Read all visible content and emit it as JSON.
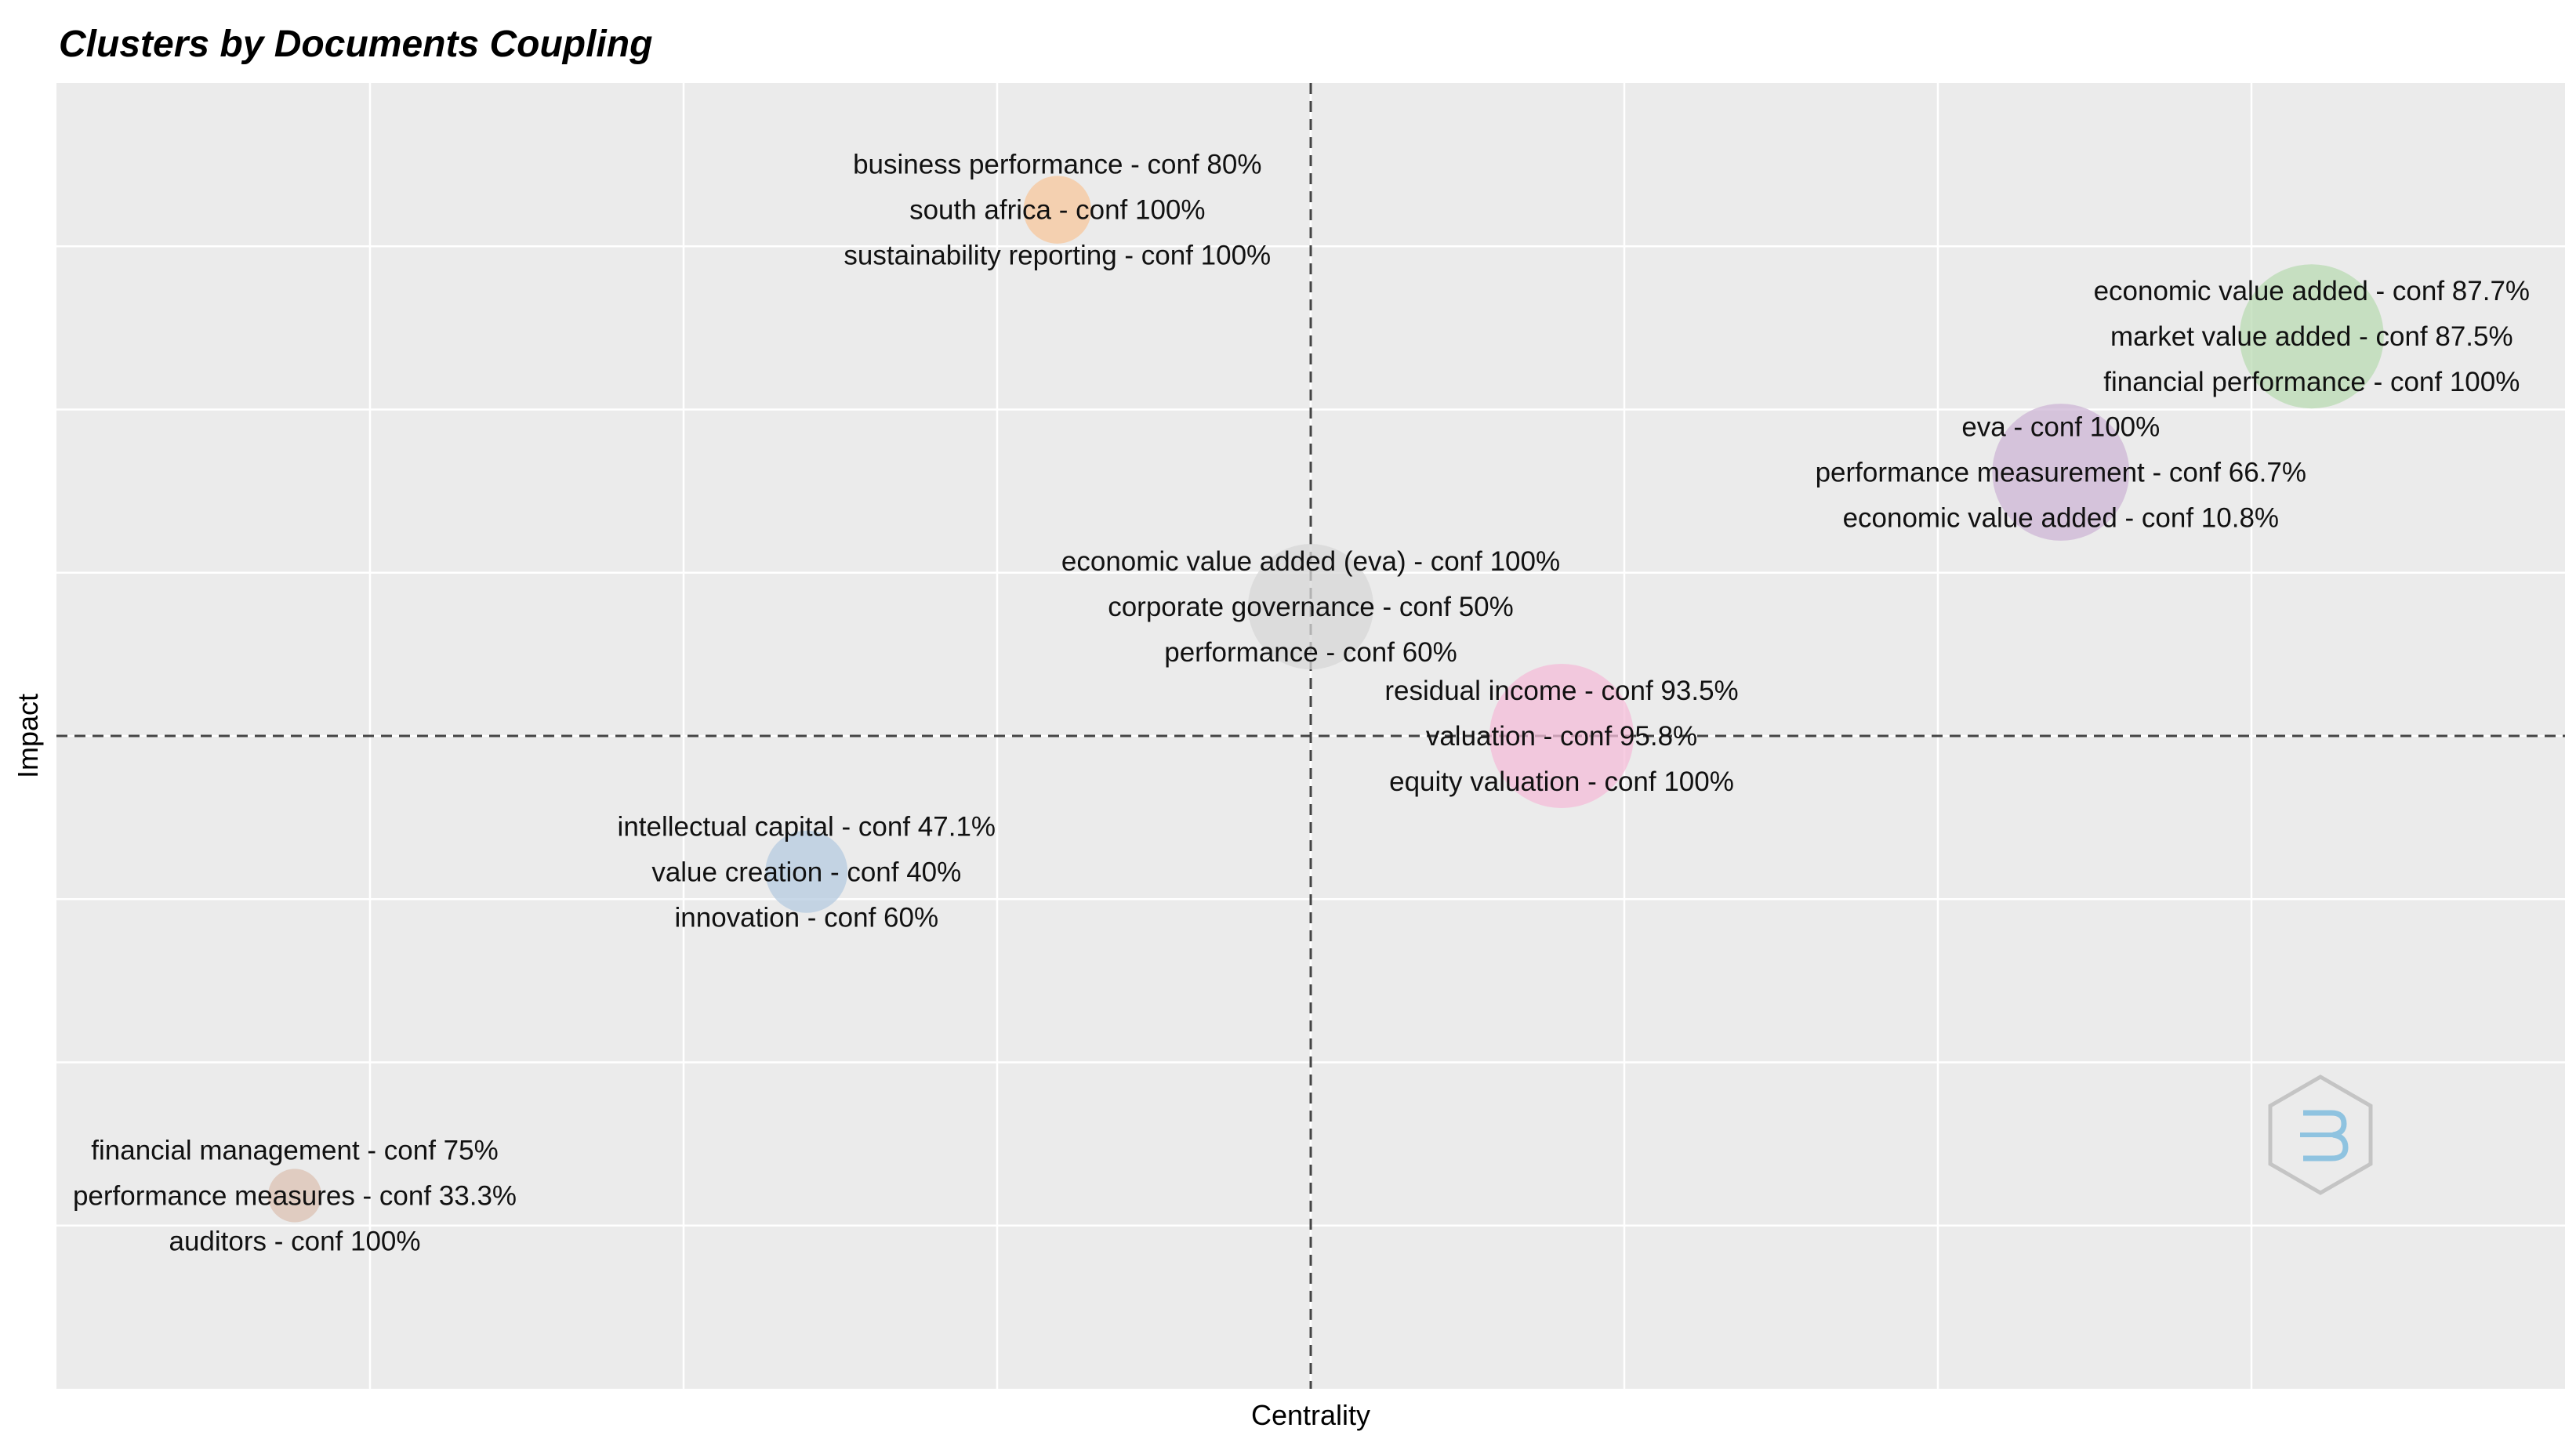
{
  "chart_data": {
    "type": "scatter",
    "title": "Clusters by Documents Coupling",
    "xlabel": "Centrality",
    "ylabel": "Impact",
    "xlim": [
      0,
      1
    ],
    "ylim": [
      0,
      1
    ],
    "grid": true,
    "reference_lines": {
      "x": 0.5,
      "y": 0.5
    },
    "clusters": [
      {
        "x": 0.399,
        "y": 0.903,
        "size": 0.47,
        "color": "#f7c79c",
        "labels": [
          "business performance - conf 80%",
          "south africa - conf 100%",
          "sustainability reporting - conf 100%"
        ]
      },
      {
        "x": 0.899,
        "y": 0.806,
        "size": 1.0,
        "color": "#b9dbb3",
        "labels": [
          "economic value added - conf 87.7%",
          "market value added - conf 87.5%",
          "financial performance - conf 100%"
        ]
      },
      {
        "x": 0.799,
        "y": 0.702,
        "size": 0.95,
        "color": "#cdb5d6",
        "labels": [
          "eva - conf 100%",
          "performance measurement - conf 66.7%",
          "economic value added - conf 10.8%"
        ]
      },
      {
        "x": 0.5,
        "y": 0.599,
        "size": 0.87,
        "color": "#d7d7d7",
        "labels": [
          "economic value added (eva) - conf 100%",
          "corporate governance - conf 50%",
          "performance - conf 60%"
        ]
      },
      {
        "x": 0.6,
        "y": 0.5,
        "size": 1.0,
        "color": "#f4bcd8",
        "labels": [
          "residual income - conf 93.5%",
          "valuation - conf 95.8%",
          "equity valuation - conf 100%"
        ]
      },
      {
        "x": 0.299,
        "y": 0.396,
        "size": 0.57,
        "color": "#b5cbe0",
        "labels": [
          "intellectual capital - conf 47.1%",
          "value creation - conf 40%",
          "innovation - conf 60%"
        ]
      },
      {
        "x": 0.095,
        "y": 0.148,
        "size": 0.37,
        "color": "#dcc1b3",
        "labels": [
          "financial management - conf 75%",
          "performance measures - conf 33.3%",
          "auditors - conf 100%"
        ]
      }
    ]
  }
}
